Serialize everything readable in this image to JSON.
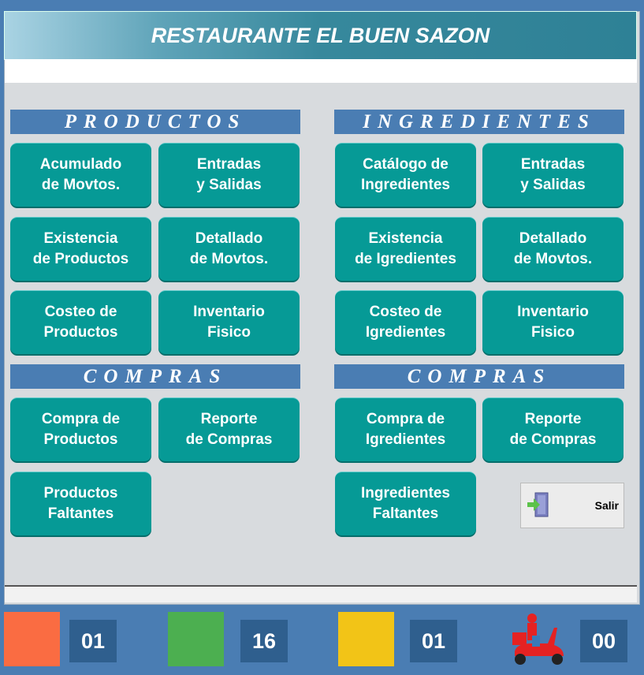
{
  "title": "RESTAURANTE EL BUEN SAZON",
  "productos": {
    "header": "PRODUCTOS",
    "buttons": [
      "Acumulado\nde Movtos.",
      "Entradas\ny Salidas",
      "Existencia\nde Productos",
      "Detallado\nde Movtos.",
      "Costeo de\nProductos",
      "Inventario\nFisico"
    ]
  },
  "ingredientes": {
    "header": "INGREDIENTES",
    "buttons": [
      "Catálogo de\nIngredientes",
      "Entradas\ny Salidas",
      "Existencia\nde Igredientes",
      "Detallado\nde Movtos.",
      "Costeo de\nIgredientes",
      "Inventario\nFisico"
    ]
  },
  "compras_productos": {
    "header": "COMPRAS",
    "buttons": [
      "Compra de\nProductos",
      "Reporte\nde Compras",
      "Productos\nFaltantes"
    ]
  },
  "compras_ingredientes": {
    "header": "COMPRAS",
    "buttons": [
      "Compra de\nIgredientes",
      "Reporte\nde Compras",
      "Ingredientes\nFaltantes"
    ]
  },
  "salir": {
    "label": "Salir",
    "icon": "exit-door-icon"
  },
  "status": [
    {
      "color": "#fa6c42",
      "count": "01"
    },
    {
      "color": "#4caf50",
      "count": "16"
    },
    {
      "color": "#f2c417",
      "count": "01"
    },
    {
      "icon": "delivery-scooter-icon",
      "count": "00"
    }
  ]
}
